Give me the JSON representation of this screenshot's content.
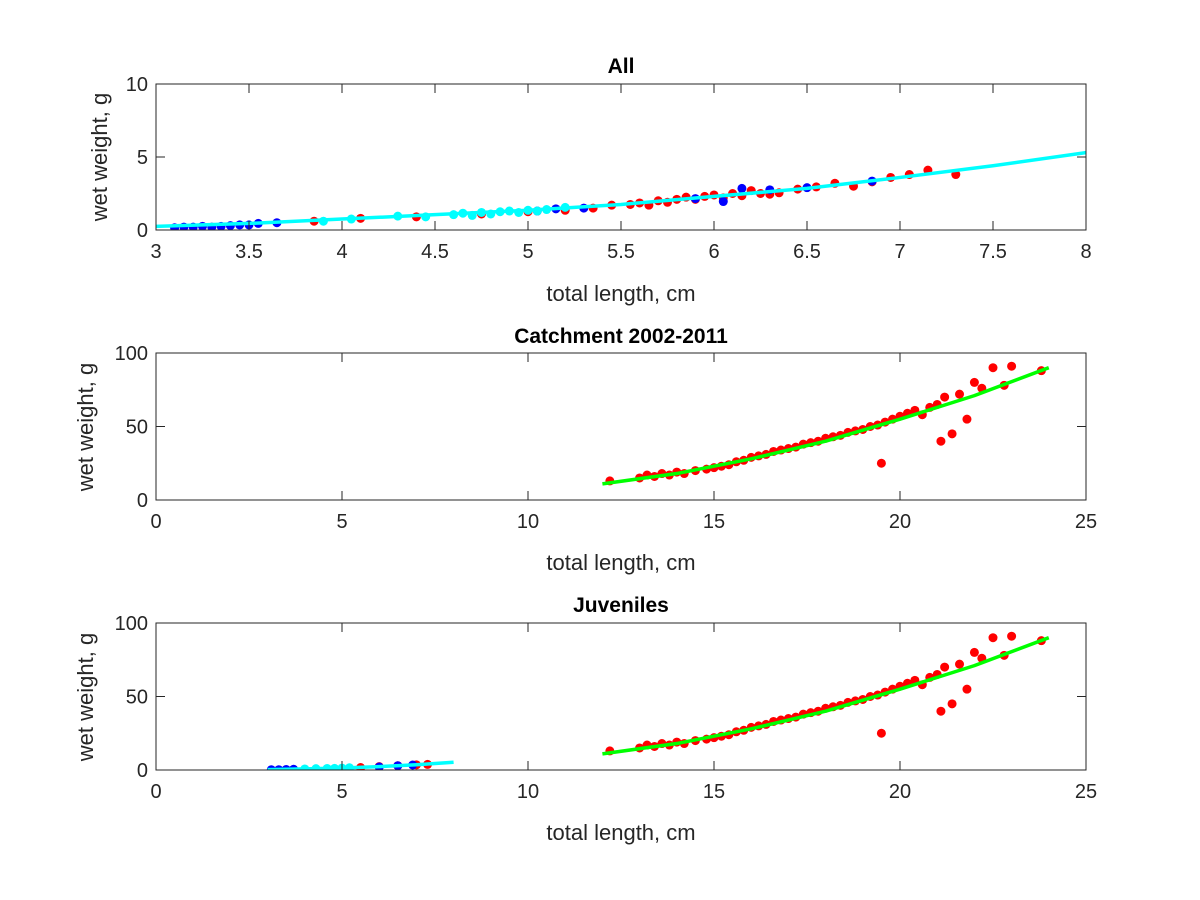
{
  "colors": {
    "red_points": "#ff0000",
    "blue_points": "#0000ff",
    "cyan_points": "#00ffff",
    "cyan_fit": "#00ffff",
    "green_fit": "#00ff00",
    "axes": "#262626"
  },
  "chart_data": [
    {
      "type": "scatter",
      "title": "All",
      "xlabel": "total length, cm",
      "ylabel": "wet weight, g",
      "xlim": [
        3,
        8
      ],
      "ylim": [
        0,
        10
      ],
      "xticks": [
        3,
        3.5,
        4,
        4.5,
        5,
        5.5,
        6,
        6.5,
        7,
        7.5,
        8
      ],
      "yticks": [
        0,
        5,
        10
      ],
      "grid": false,
      "series": [
        {
          "color": "#ff0000",
          "points": [
            [
              3.85,
              0.6
            ],
            [
              4.1,
              0.8
            ],
            [
              4.4,
              0.9
            ],
            [
              4.75,
              1.1
            ],
            [
              5.0,
              1.25
            ],
            [
              5.2,
              1.35
            ],
            [
              5.35,
              1.5
            ],
            [
              5.45,
              1.7
            ],
            [
              5.55,
              1.75
            ],
            [
              5.6,
              1.85
            ],
            [
              5.65,
              1.7
            ],
            [
              5.7,
              2.0
            ],
            [
              5.75,
              1.9
            ],
            [
              5.8,
              2.1
            ],
            [
              5.85,
              2.25
            ],
            [
              5.9,
              2.1
            ],
            [
              5.95,
              2.3
            ],
            [
              6.0,
              2.4
            ],
            [
              6.05,
              2.2
            ],
            [
              6.1,
              2.5
            ],
            [
              6.15,
              2.35
            ],
            [
              6.2,
              2.7
            ],
            [
              6.25,
              2.5
            ],
            [
              6.3,
              2.45
            ],
            [
              6.35,
              2.55
            ],
            [
              6.45,
              2.8
            ],
            [
              6.55,
              2.95
            ],
            [
              6.65,
              3.2
            ],
            [
              6.75,
              3.0
            ],
            [
              6.85,
              3.3
            ],
            [
              6.95,
              3.6
            ],
            [
              7.05,
              3.8
            ],
            [
              7.15,
              4.1
            ],
            [
              7.3,
              3.8
            ]
          ]
        },
        {
          "color": "#0000ff",
          "points": [
            [
              3.1,
              0.15
            ],
            [
              3.15,
              0.2
            ],
            [
              3.2,
              0.2
            ],
            [
              3.25,
              0.25
            ],
            [
              3.3,
              0.2
            ],
            [
              3.35,
              0.25
            ],
            [
              3.4,
              0.3
            ],
            [
              3.45,
              0.35
            ],
            [
              3.5,
              0.35
            ],
            [
              3.55,
              0.45
            ],
            [
              3.65,
              0.5
            ],
            [
              5.05,
              1.3
            ],
            [
              5.15,
              1.45
            ],
            [
              5.3,
              1.5
            ],
            [
              5.9,
              2.15
            ],
            [
              6.05,
              1.95
            ],
            [
              6.15,
              2.85
            ],
            [
              6.3,
              2.75
            ],
            [
              6.5,
              2.9
            ],
            [
              6.85,
              3.35
            ]
          ]
        },
        {
          "color": "#00ffff",
          "points": [
            [
              3.9,
              0.6
            ],
            [
              4.05,
              0.75
            ],
            [
              4.3,
              0.95
            ],
            [
              4.45,
              0.9
            ],
            [
              4.6,
              1.05
            ],
            [
              4.65,
              1.15
            ],
            [
              4.7,
              1.0
            ],
            [
              4.75,
              1.2
            ],
            [
              4.8,
              1.1
            ],
            [
              4.85,
              1.25
            ],
            [
              4.9,
              1.3
            ],
            [
              4.95,
              1.2
            ],
            [
              5.0,
              1.35
            ],
            [
              5.05,
              1.3
            ],
            [
              5.1,
              1.4
            ],
            [
              5.2,
              1.55
            ]
          ]
        }
      ],
      "fit_lines": [
        {
          "color": "#00ffff",
          "x": [
            3.0,
            3.5,
            4.0,
            4.5,
            5.0,
            5.5,
            6.0,
            6.5,
            7.0,
            7.5,
            8.0
          ],
          "y": [
            0.25,
            0.45,
            0.75,
            1.05,
            1.35,
            1.75,
            2.3,
            2.85,
            3.6,
            4.4,
            5.3
          ]
        }
      ]
    },
    {
      "type": "scatter",
      "title": "Catchment 2002-2011",
      "xlabel": "total length, cm",
      "ylabel": "wet weight, g",
      "xlim": [
        0,
        25
      ],
      "ylim": [
        0,
        100
      ],
      "xticks": [
        0,
        5,
        10,
        15,
        20,
        25
      ],
      "yticks": [
        0,
        50,
        100
      ],
      "grid": false,
      "series": [
        {
          "color": "#ff0000",
          "points": [
            [
              12.2,
              13
            ],
            [
              13.0,
              15
            ],
            [
              13.2,
              17
            ],
            [
              13.4,
              16
            ],
            [
              13.6,
              18
            ],
            [
              13.8,
              17
            ],
            [
              14.0,
              19
            ],
            [
              14.2,
              18
            ],
            [
              14.5,
              20
            ],
            [
              14.8,
              21
            ],
            [
              15.0,
              22
            ],
            [
              15.2,
              23
            ],
            [
              15.4,
              24
            ],
            [
              15.6,
              26
            ],
            [
              15.8,
              27
            ],
            [
              16.0,
              29
            ],
            [
              16.2,
              30
            ],
            [
              16.4,
              31
            ],
            [
              16.6,
              33
            ],
            [
              16.8,
              34
            ],
            [
              17.0,
              35
            ],
            [
              17.2,
              36
            ],
            [
              17.4,
              38
            ],
            [
              17.6,
              39
            ],
            [
              17.8,
              40
            ],
            [
              18.0,
              42
            ],
            [
              18.2,
              43
            ],
            [
              18.4,
              44
            ],
            [
              18.6,
              46
            ],
            [
              18.8,
              47
            ],
            [
              19.0,
              48
            ],
            [
              19.2,
              50
            ],
            [
              19.4,
              51
            ],
            [
              19.5,
              25
            ],
            [
              19.6,
              53
            ],
            [
              19.8,
              55
            ],
            [
              20.0,
              57
            ],
            [
              20.2,
              59
            ],
            [
              20.4,
              61
            ],
            [
              20.6,
              58
            ],
            [
              20.8,
              63
            ],
            [
              21.0,
              65
            ],
            [
              21.1,
              40
            ],
            [
              21.2,
              70
            ],
            [
              21.4,
              45
            ],
            [
              21.6,
              72
            ],
            [
              21.8,
              55
            ],
            [
              22.0,
              80
            ],
            [
              22.2,
              76
            ],
            [
              22.5,
              90
            ],
            [
              22.8,
              78
            ],
            [
              23.0,
              91
            ],
            [
              23.8,
              88
            ]
          ]
        }
      ],
      "fit_lines": [
        {
          "color": "#00ff00",
          "x": [
            12,
            14,
            16,
            18,
            20,
            22,
            24
          ],
          "y": [
            11,
            18,
            28,
            40,
            55,
            71,
            90
          ]
        }
      ]
    },
    {
      "type": "scatter",
      "title": "Juveniles",
      "xlabel": "total length, cm",
      "ylabel": "wet weight, g",
      "xlim": [
        0,
        25
      ],
      "ylim": [
        0,
        100
      ],
      "xticks": [
        0,
        5,
        10,
        15,
        20,
        25
      ],
      "yticks": [
        0,
        50,
        100
      ],
      "grid": false,
      "series": [
        {
          "color": "#ff0000",
          "points": [
            [
              5.5,
              1.7
            ],
            [
              6.0,
              2.3
            ],
            [
              6.5,
              2.9
            ],
            [
              7.0,
              3.5
            ],
            [
              7.3,
              3.8
            ],
            [
              12.2,
              13
            ],
            [
              13.0,
              15
            ],
            [
              13.2,
              17
            ],
            [
              13.4,
              16
            ],
            [
              13.6,
              18
            ],
            [
              13.8,
              17
            ],
            [
              14.0,
              19
            ],
            [
              14.2,
              18
            ],
            [
              14.5,
              20
            ],
            [
              14.8,
              21
            ],
            [
              15.0,
              22
            ],
            [
              15.2,
              23
            ],
            [
              15.4,
              24
            ],
            [
              15.6,
              26
            ],
            [
              15.8,
              27
            ],
            [
              16.0,
              29
            ],
            [
              16.2,
              30
            ],
            [
              16.4,
              31
            ],
            [
              16.6,
              33
            ],
            [
              16.8,
              34
            ],
            [
              17.0,
              35
            ],
            [
              17.2,
              36
            ],
            [
              17.4,
              38
            ],
            [
              17.6,
              39
            ],
            [
              17.8,
              40
            ],
            [
              18.0,
              42
            ],
            [
              18.2,
              43
            ],
            [
              18.4,
              44
            ],
            [
              18.6,
              46
            ],
            [
              18.8,
              47
            ],
            [
              19.0,
              48
            ],
            [
              19.2,
              50
            ],
            [
              19.4,
              51
            ],
            [
              19.5,
              25
            ],
            [
              19.6,
              53
            ],
            [
              19.8,
              55
            ],
            [
              20.0,
              57
            ],
            [
              20.2,
              59
            ],
            [
              20.4,
              61
            ],
            [
              20.6,
              58
            ],
            [
              20.8,
              63
            ],
            [
              21.0,
              65
            ],
            [
              21.1,
              40
            ],
            [
              21.2,
              70
            ],
            [
              21.4,
              45
            ],
            [
              21.6,
              72
            ],
            [
              21.8,
              55
            ],
            [
              22.0,
              80
            ],
            [
              22.2,
              76
            ],
            [
              22.5,
              90
            ],
            [
              22.8,
              78
            ],
            [
              23.0,
              91
            ],
            [
              23.8,
              88
            ]
          ]
        },
        {
          "color": "#0000ff",
          "points": [
            [
              3.1,
              0.2
            ],
            [
              3.3,
              0.2
            ],
            [
              3.5,
              0.35
            ],
            [
              3.7,
              0.5
            ],
            [
              6.0,
              2.0
            ],
            [
              6.5,
              2.9
            ],
            [
              6.9,
              3.4
            ]
          ]
        },
        {
          "color": "#00ffff",
          "points": [
            [
              4.0,
              0.7
            ],
            [
              4.3,
              0.9
            ],
            [
              4.6,
              1.05
            ],
            [
              4.8,
              1.1
            ],
            [
              5.0,
              1.3
            ],
            [
              5.2,
              1.5
            ]
          ]
        }
      ],
      "fit_lines": [
        {
          "color": "#00ffff",
          "x": [
            3,
            4,
            5,
            6,
            7,
            8
          ],
          "y": [
            0.25,
            0.75,
            1.35,
            2.3,
            3.6,
            5.3
          ]
        },
        {
          "color": "#00ff00",
          "x": [
            12,
            14,
            16,
            18,
            20,
            22,
            24
          ],
          "y": [
            11,
            18,
            28,
            40,
            55,
            71,
            90
          ]
        }
      ]
    }
  ]
}
